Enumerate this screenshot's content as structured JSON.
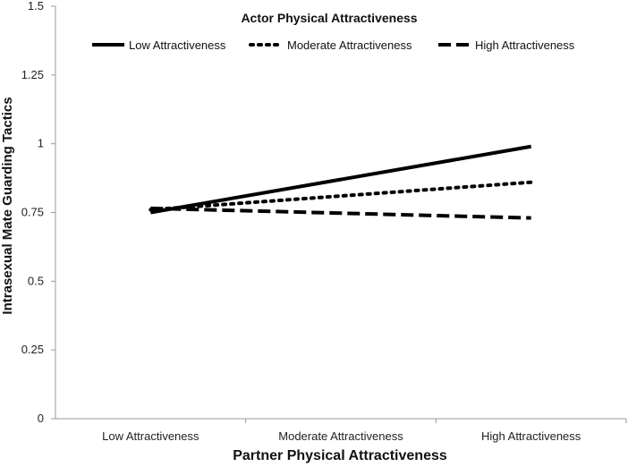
{
  "chart_data": {
    "type": "line",
    "title": "Actor Physical Attractiveness",
    "xlabel": "Partner Physical Attractiveness",
    "ylabel": "Intrasexual Mate Guarding Tactics",
    "categories": [
      "Low Attractiveness",
      "Moderate Attractiveness",
      "High Attractiveness"
    ],
    "yticks": [
      "0",
      "0.25",
      "0.5",
      "0.75",
      "1",
      "1.25",
      "1.5"
    ],
    "ylim": [
      0,
      1.5
    ],
    "legend_position": "top",
    "series": [
      {
        "name": "Low Attractiveness",
        "style": "solid",
        "x": [
          "Low Attractiveness",
          "High Attractiveness"
        ],
        "values": [
          0.75,
          0.99
        ]
      },
      {
        "name": "Moderate Attractiveness",
        "style": "dotted",
        "x": [
          "Low Attractiveness",
          "High Attractiveness"
        ],
        "values": [
          0.76,
          0.86
        ]
      },
      {
        "name": "High Attractiveness",
        "style": "dashed",
        "x": [
          "Low Attractiveness",
          "High Attractiveness"
        ],
        "values": [
          0.765,
          0.73
        ]
      }
    ],
    "grid": false,
    "line_color": "#000000"
  }
}
